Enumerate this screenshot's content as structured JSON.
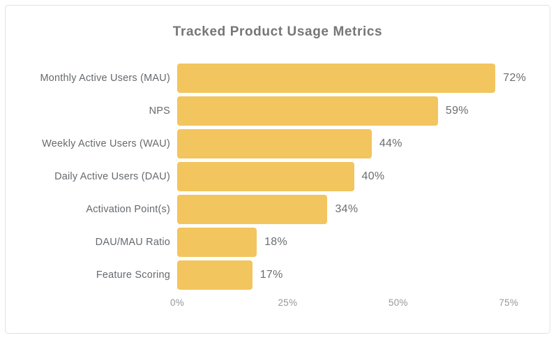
{
  "chart_data": {
    "type": "bar",
    "orientation": "horizontal",
    "title": "Tracked Product Usage Metrics",
    "categories": [
      "Monthly Active Users (MAU)",
      "NPS",
      "Weekly Active Users (WAU)",
      "Daily Active Users (DAU)",
      "Activation Point(s)",
      "DAU/MAU Ratio",
      "Feature Scoring"
    ],
    "values": [
      72,
      59,
      44,
      40,
      34,
      18,
      17
    ],
    "value_labels": [
      "72%",
      "59%",
      "44%",
      "40%",
      "34%",
      "18%",
      "17%"
    ],
    "x_ticks": [
      {
        "label": "0%",
        "value": 0
      },
      {
        "label": "25%",
        "value": 25
      },
      {
        "label": "50%",
        "value": 50
      },
      {
        "label": "75%",
        "value": 75
      }
    ],
    "xlim": [
      0,
      80
    ],
    "grid": false,
    "legend": false,
    "colors": {
      "bar": "#f2c55e",
      "title_text": "#767676",
      "category_text": "#666a6e",
      "value_text": "#6a6d70",
      "tick_text": "#94979b",
      "panel_border": "#dde1e6",
      "background": "#ffffff"
    }
  }
}
